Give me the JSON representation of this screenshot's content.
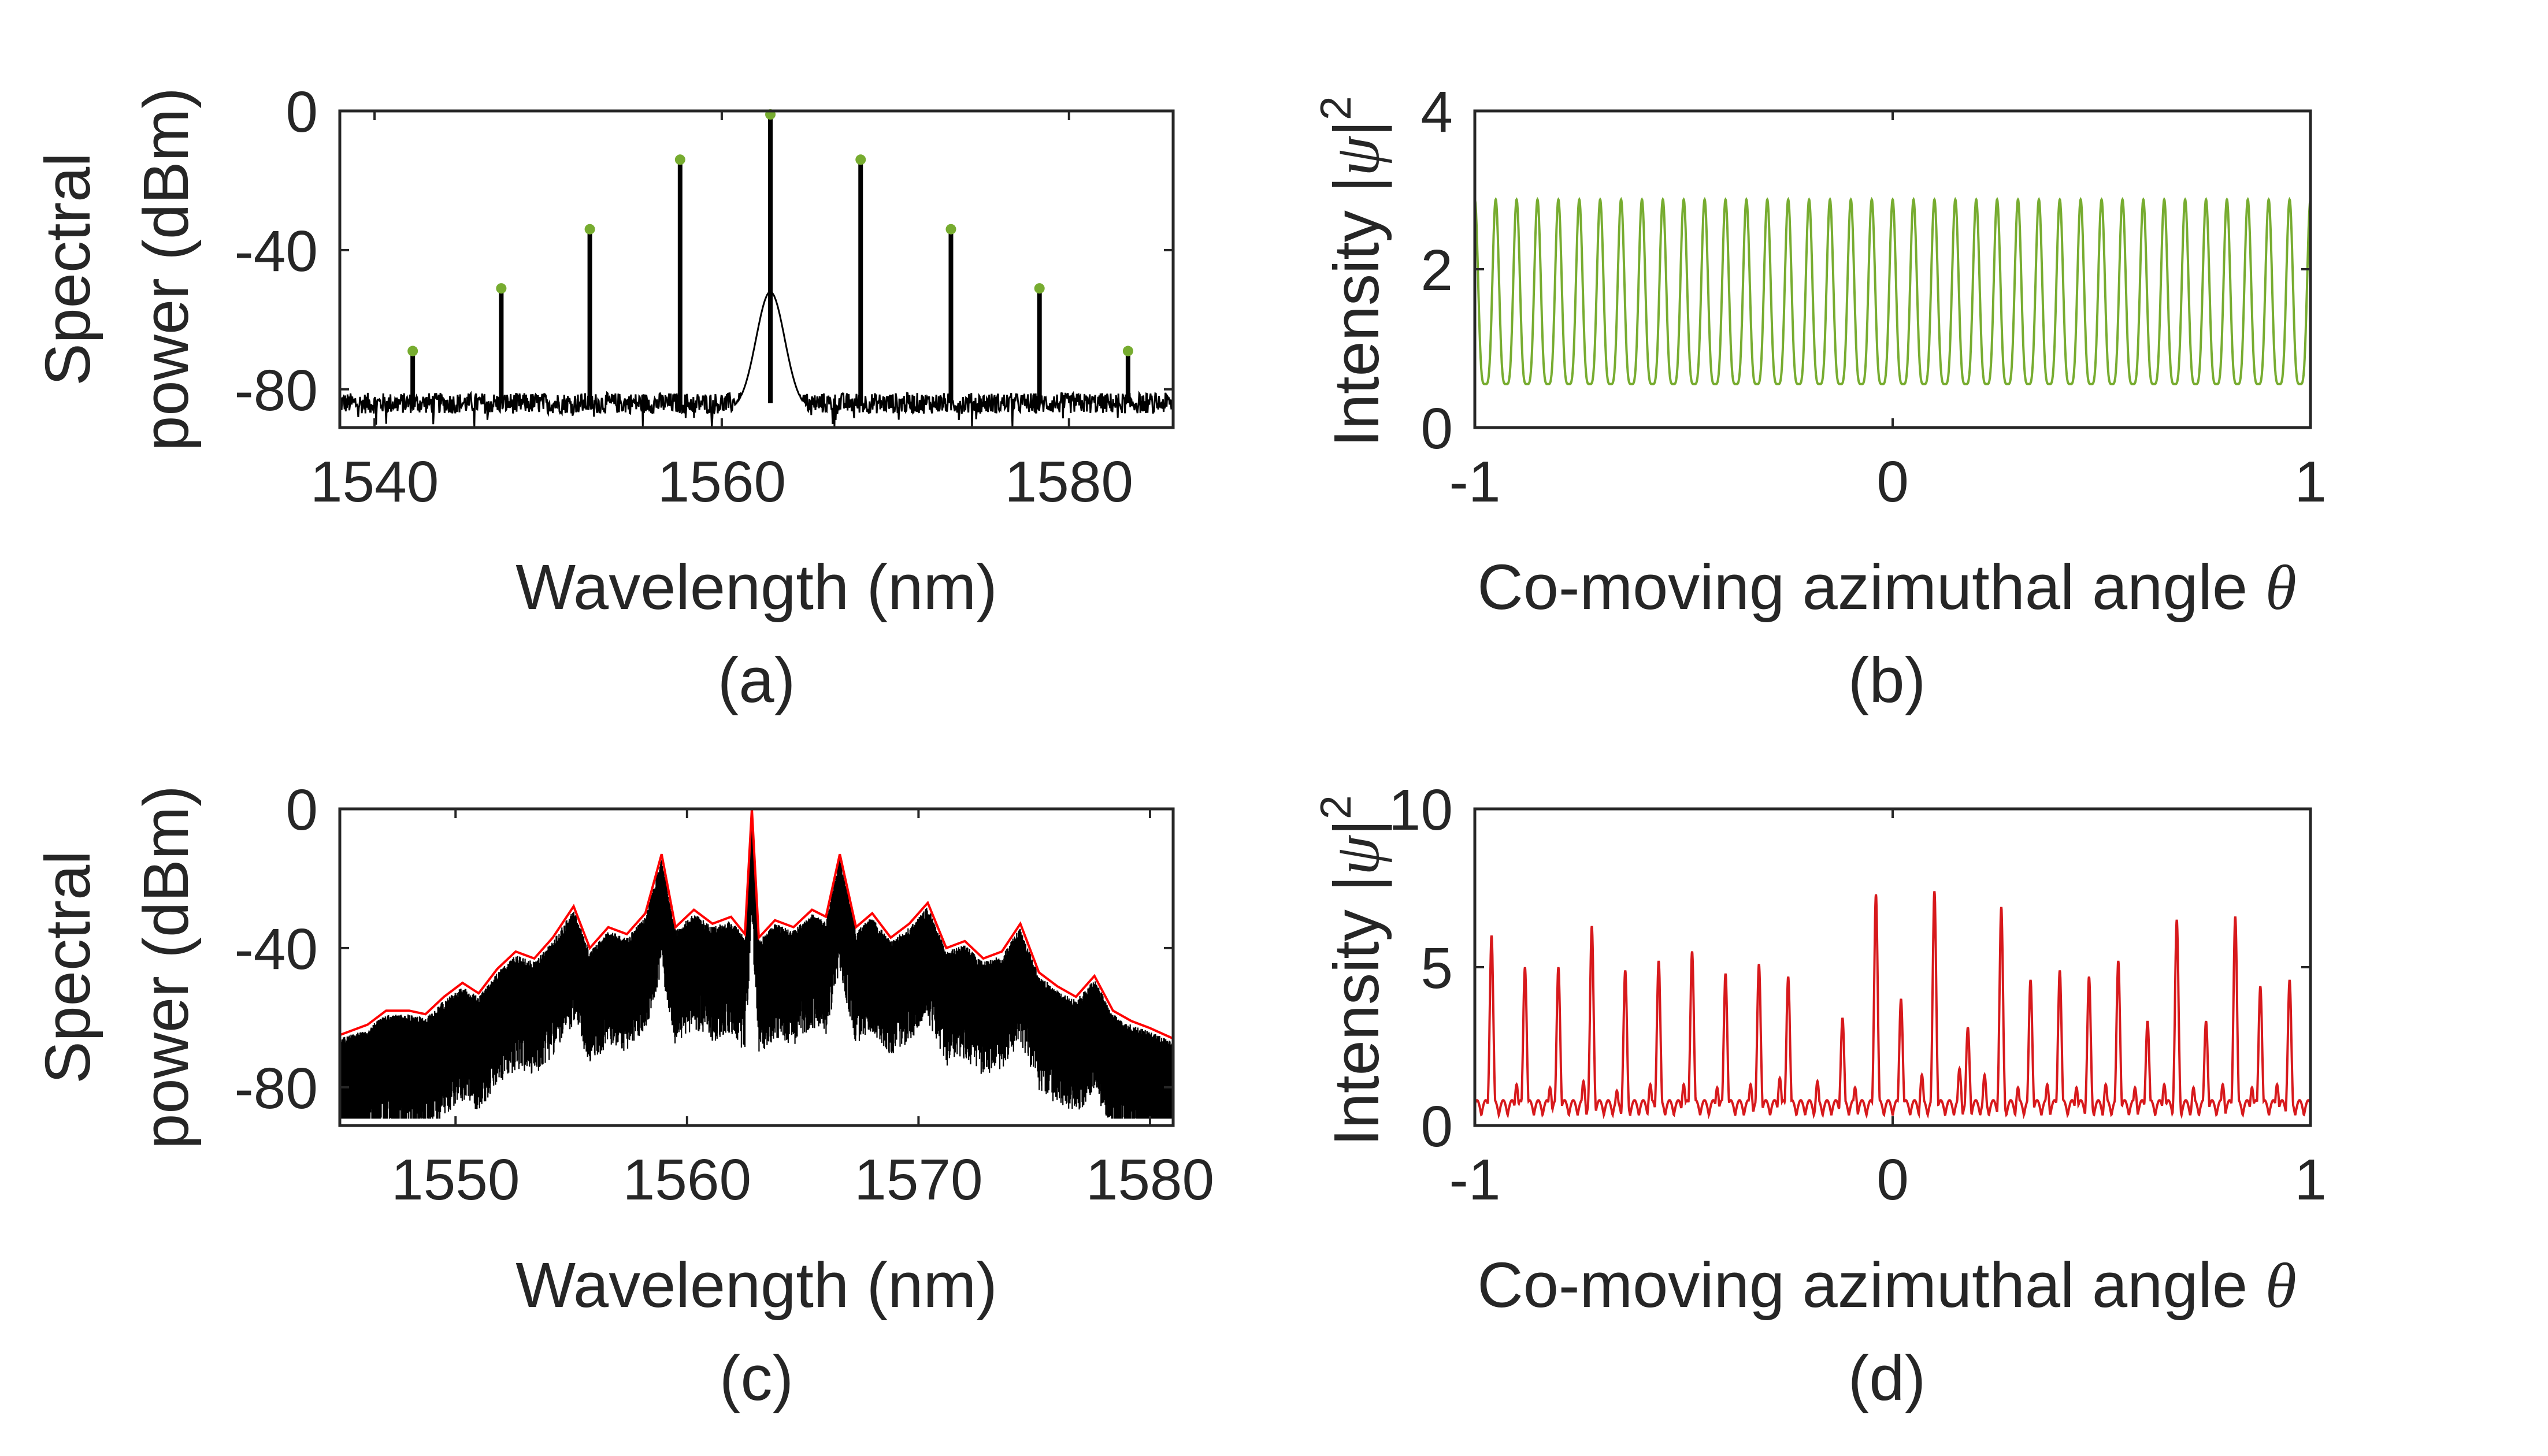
{
  "chart_data": [
    {
      "panel": "(a)",
      "type": "line",
      "xlabel": "Wavelength (nm)",
      "ylabel": [
        "Spectral",
        "power (dBm)"
      ],
      "xlim": [
        1538,
        1586
      ],
      "ylim": [
        -91,
        0
      ],
      "xticks": [
        1540,
        1560,
        1580
      ],
      "yticks": [
        0,
        -40,
        -80
      ],
      "xtick_labels": [
        "1540",
        "1560",
        "1580"
      ],
      "ytick_labels": [
        "0",
        "-40",
        "-80"
      ],
      "noise_floor_dBm": -84,
      "series": [
        {
          "kind": "spectrum",
          "color": "#000000",
          "comb_lines": [
            {
              "x": 1542.2,
              "y": -69
            },
            {
              "x": 1547.3,
              "y": -51
            },
            {
              "x": 1552.4,
              "y": -34
            },
            {
              "x": 1557.6,
              "y": -14
            },
            {
              "x": 1562.8,
              "y": -1
            },
            {
              "x": 1568.0,
              "y": -14
            },
            {
              "x": 1573.2,
              "y": -34
            },
            {
              "x": 1578.3,
              "y": -51
            },
            {
              "x": 1583.4,
              "y": -69
            }
          ],
          "pump_pedestal": {
            "center": 1562.8,
            "peak_dBm": -52,
            "width_nm": 0.9
          }
        },
        {
          "kind": "markers",
          "color": "#77ac30",
          "points": [
            {
              "x": 1542.2,
              "y": -69
            },
            {
              "x": 1547.3,
              "y": -51
            },
            {
              "x": 1552.4,
              "y": -34
            },
            {
              "x": 1557.6,
              "y": -14
            },
            {
              "x": 1562.8,
              "y": -1
            },
            {
              "x": 1568.0,
              "y": -14
            },
            {
              "x": 1573.2,
              "y": -34
            },
            {
              "x": 1578.3,
              "y": -51
            },
            {
              "x": 1583.4,
              "y": -69
            }
          ]
        }
      ]
    },
    {
      "panel": "(b)",
      "type": "line",
      "xlabel": "Co-moving azimuthal angle",
      "xlabel_symbol": "θ",
      "ylabel": "Intensity",
      "xlim": [
        -1,
        1
      ],
      "ylim": [
        0,
        4
      ],
      "xticks": [
        -1,
        0,
        1
      ],
      "yticks": [
        0,
        2,
        4
      ],
      "xtick_labels": [
        "-1",
        "0",
        "1"
      ],
      "ytick_labels": [
        "0",
        "2",
        "4"
      ],
      "series": [
        {
          "kind": "periodic",
          "color": "#77ac30",
          "periods": 40,
          "min": 0.55,
          "max": 2.88
        }
      ]
    },
    {
      "panel": "(c)",
      "type": "line",
      "xlabel": "Wavelength (nm)",
      "ylabel": [
        "Spectral",
        "power (dBm)"
      ],
      "xlim": [
        1545,
        1581
      ],
      "ylim": [
        -91,
        0
      ],
      "xticks": [
        1550,
        1560,
        1570,
        1580
      ],
      "yticks": [
        0,
        -40,
        -80
      ],
      "xtick_labels": [
        "1550",
        "1560",
        "1570",
        "1580"
      ],
      "ytick_labels": [
        "0",
        "-40",
        "-80"
      ],
      "series": [
        {
          "kind": "envelope",
          "color": "#ff0000",
          "points": [
            {
              "x": 1545.0,
              "y": -65
            },
            {
              "x": 1546.2,
              "y": -62
            },
            {
              "x": 1547.0,
              "y": -58
            },
            {
              "x": 1548.0,
              "y": -58
            },
            {
              "x": 1548.7,
              "y": -59
            },
            {
              "x": 1549.5,
              "y": -54
            },
            {
              "x": 1550.3,
              "y": -50
            },
            {
              "x": 1551.0,
              "y": -53
            },
            {
              "x": 1551.8,
              "y": -46
            },
            {
              "x": 1552.6,
              "y": -41
            },
            {
              "x": 1553.4,
              "y": -43
            },
            {
              "x": 1554.2,
              "y": -37
            },
            {
              "x": 1555.1,
              "y": -28
            },
            {
              "x": 1555.8,
              "y": -40
            },
            {
              "x": 1556.6,
              "y": -34
            },
            {
              "x": 1557.4,
              "y": -36
            },
            {
              "x": 1558.2,
              "y": -30
            },
            {
              "x": 1558.9,
              "y": -13
            },
            {
              "x": 1559.5,
              "y": -34
            },
            {
              "x": 1560.3,
              "y": -29
            },
            {
              "x": 1561.1,
              "y": -33
            },
            {
              "x": 1561.9,
              "y": -31
            },
            {
              "x": 1562.5,
              "y": -36
            },
            {
              "x": 1562.8,
              "y": 0
            },
            {
              "x": 1563.1,
              "y": -37
            },
            {
              "x": 1563.8,
              "y": -32
            },
            {
              "x": 1564.6,
              "y": -34
            },
            {
              "x": 1565.4,
              "y": -29
            },
            {
              "x": 1566.0,
              "y": -31
            },
            {
              "x": 1566.6,
              "y": -13
            },
            {
              "x": 1567.3,
              "y": -34
            },
            {
              "x": 1568.0,
              "y": -30
            },
            {
              "x": 1568.8,
              "y": -37
            },
            {
              "x": 1569.6,
              "y": -33
            },
            {
              "x": 1570.4,
              "y": -27
            },
            {
              "x": 1571.2,
              "y": -40
            },
            {
              "x": 1572.0,
              "y": -38
            },
            {
              "x": 1572.8,
              "y": -43
            },
            {
              "x": 1573.6,
              "y": -41
            },
            {
              "x": 1574.4,
              "y": -33
            },
            {
              "x": 1575.2,
              "y": -47
            },
            {
              "x": 1576.0,
              "y": -51
            },
            {
              "x": 1576.8,
              "y": -54
            },
            {
              "x": 1577.6,
              "y": -48
            },
            {
              "x": 1578.4,
              "y": -58
            },
            {
              "x": 1579.2,
              "y": -61
            },
            {
              "x": 1580.0,
              "y": -63
            },
            {
              "x": 1581.0,
              "y": -66
            }
          ]
        },
        {
          "kind": "dense-spectrum",
          "color": "#000000",
          "fill_depth_dBm": 22
        }
      ]
    },
    {
      "panel": "(d)",
      "type": "line",
      "xlabel": "Co-moving azimuthal angle",
      "xlabel_symbol": "θ",
      "ylabel": "Intensity",
      "xlim": [
        -1,
        1
      ],
      "ylim": [
        0,
        10
      ],
      "xticks": [
        -1,
        0,
        1
      ],
      "yticks": [
        0,
        5,
        10
      ],
      "xtick_labels": [
        "-1",
        "0",
        "1"
      ],
      "ytick_labels": [
        "0",
        "5",
        "10"
      ],
      "series": [
        {
          "kind": "pulses",
          "color": "#d7191c",
          "baseline": 0.8,
          "peaks": [
            {
              "x": -0.96,
              "y": 6.0
            },
            {
              "x": -0.9,
              "y": 1.3
            },
            {
              "x": -0.88,
              "y": 5.0
            },
            {
              "x": -0.82,
              "y": 1.2
            },
            {
              "x": -0.8,
              "y": 5.0
            },
            {
              "x": -0.74,
              "y": 1.4
            },
            {
              "x": -0.72,
              "y": 6.3
            },
            {
              "x": -0.66,
              "y": 1.1
            },
            {
              "x": -0.64,
              "y": 4.9
            },
            {
              "x": -0.58,
              "y": 1.3
            },
            {
              "x": -0.56,
              "y": 5.2
            },
            {
              "x": -0.5,
              "y": 1.3
            },
            {
              "x": -0.48,
              "y": 5.5
            },
            {
              "x": -0.42,
              "y": 1.2
            },
            {
              "x": -0.4,
              "y": 4.8
            },
            {
              "x": -0.34,
              "y": 1.3
            },
            {
              "x": -0.32,
              "y": 5.1
            },
            {
              "x": -0.27,
              "y": 1.5
            },
            {
              "x": -0.25,
              "y": 4.7
            },
            {
              "x": -0.18,
              "y": 1.4
            },
            {
              "x": -0.12,
              "y": 3.4
            },
            {
              "x": -0.09,
              "y": 1.2
            },
            {
              "x": -0.04,
              "y": 7.3
            },
            {
              "x": 0.02,
              "y": 4.0
            },
            {
              "x": 0.07,
              "y": 1.6
            },
            {
              "x": 0.1,
              "y": 7.4
            },
            {
              "x": 0.16,
              "y": 1.8
            },
            {
              "x": 0.18,
              "y": 3.1
            },
            {
              "x": 0.22,
              "y": 1.6
            },
            {
              "x": 0.26,
              "y": 6.9
            },
            {
              "x": 0.3,
              "y": 1.2
            },
            {
              "x": 0.33,
              "y": 4.6
            },
            {
              "x": 0.37,
              "y": 1.3
            },
            {
              "x": 0.4,
              "y": 4.9
            },
            {
              "x": 0.44,
              "y": 1.2
            },
            {
              "x": 0.47,
              "y": 4.7
            },
            {
              "x": 0.51,
              "y": 1.3
            },
            {
              "x": 0.54,
              "y": 5.2
            },
            {
              "x": 0.58,
              "y": 1.2
            },
            {
              "x": 0.61,
              "y": 3.3
            },
            {
              "x": 0.65,
              "y": 1.3
            },
            {
              "x": 0.68,
              "y": 6.5
            },
            {
              "x": 0.72,
              "y": 1.2
            },
            {
              "x": 0.75,
              "y": 3.3
            },
            {
              "x": 0.79,
              "y": 1.3
            },
            {
              "x": 0.82,
              "y": 6.6
            },
            {
              "x": 0.86,
              "y": 1.2
            },
            {
              "x": 0.88,
              "y": 4.4
            },
            {
              "x": 0.92,
              "y": 1.3
            },
            {
              "x": 0.95,
              "y": 4.6
            }
          ]
        }
      ]
    }
  ]
}
